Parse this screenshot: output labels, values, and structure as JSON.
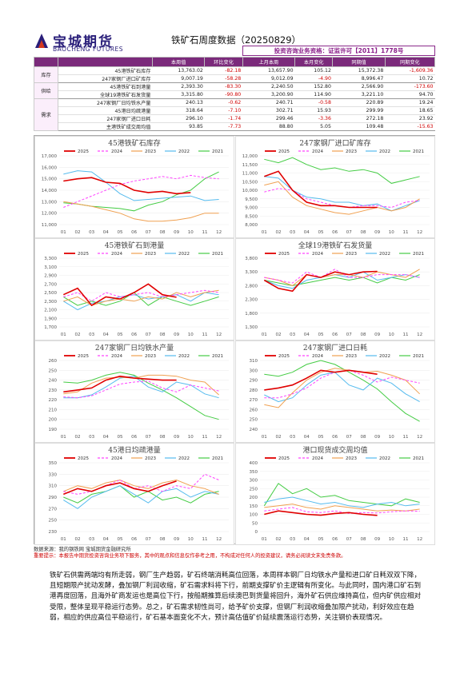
{
  "header": {
    "logo_cn": "宝城期货",
    "logo_en": "BAOCHENG FUTURES",
    "title": "铁矿石周度数据（20250829）",
    "license": "投资咨询业务资格：证监许可【2011】1778号"
  },
  "summary_table": {
    "columns": [
      "",
      "",
      "本周值",
      "环比变化",
      "上月本周",
      "本月变化",
      "同期值",
      "同期变化"
    ],
    "groups": [
      {
        "category": "库存",
        "rows": [
          {
            "name": "45港铁矿石库存",
            "values": [
              "13,763.02",
              "-82.18",
              "13,657.90",
              "105.12",
              "15,372.38",
              "-1,609.36"
            ]
          },
          {
            "name": "247家钢厂进口矿库存",
            "values": [
              "9,007.19",
              "-58.28",
              "9,012.09",
              "-4.90",
              "8,996.47",
              "10.72"
            ]
          }
        ]
      },
      {
        "category": "供给",
        "rows": [
          {
            "name": "45港铁矿石到港量",
            "values": [
              "2,393.30",
              "-83.30",
              "2,240.50",
              "152.80",
              "2,566.90",
              "-173.60"
            ]
          },
          {
            "name": "全球19港铁矿石发货量",
            "values": [
              "3,315.80",
              "-90.80",
              "3,200.90",
              "114.90",
              "3,221.10",
              "94.70"
            ]
          }
        ]
      },
      {
        "category": "需求",
        "rows": [
          {
            "name": "247家钢厂日均铁水产量",
            "values": [
              "240.13",
              "-0.62",
              "240.71",
              "-0.58",
              "220.89",
              "19.24"
            ]
          },
          {
            "name": "45港日均疏港量",
            "values": [
              "318.64",
              "-7.10",
              "302.71",
              "15.93",
              "299.99",
              "18.65"
            ]
          },
          {
            "name": "247家钢厂进口日耗",
            "values": [
              "296.10",
              "-1.74",
              "299.46",
              "-3.36",
              "272.18",
              "23.92"
            ]
          },
          {
            "name": "主港铁矿成交周均值",
            "values": [
              "93.85",
              "-7.73",
              "88.80",
              "5.05",
              "109.48",
              "-15.63"
            ]
          }
        ]
      }
    ]
  },
  "legend_years": [
    "2025",
    "2024",
    "2023",
    "2022",
    "2021"
  ],
  "series_colors": {
    "2025": "#e00000",
    "2024": "#ff44ff",
    "2023": "#f0a050",
    "2022": "#55bbee",
    "2021": "#44cc44"
  },
  "month_labels": [
    "01",
    "02",
    "03",
    "04",
    "05",
    "06",
    "07",
    "08",
    "09",
    "10",
    "11",
    "12"
  ],
  "charts": [
    {
      "title": "45港铁矿石库存",
      "yticks": [
        "11,000",
        "12,000",
        "13,000",
        "14,000",
        "15,000",
        "16,000",
        "17,000"
      ],
      "ylim": [
        11000,
        17000
      ],
      "series": {
        "2025": [
          14800,
          15000,
          15100,
          14700,
          14600,
          14000,
          13800,
          13900,
          13700,
          13800
        ],
        "2024": [
          12500,
          13000,
          13500,
          14000,
          14500,
          14800,
          15000,
          15200,
          15000,
          15300,
          15100,
          15000
        ],
        "2023": [
          13000,
          12800,
          12600,
          12300,
          12000,
          11500,
          11300,
          11300,
          11400,
          11600,
          12000,
          12000
        ],
        "2022": [
          15400,
          15700,
          15600,
          14700,
          13700,
          13100,
          13200,
          13300,
          13400,
          13500,
          13100,
          13200
        ],
        "2021": [
          12900,
          12800,
          12600,
          12500,
          12400,
          12200,
          12700,
          13000,
          13600,
          14000,
          15000,
          15600
        ]
      }
    },
    {
      "title": "247家钢厂进口矿库存",
      "yticks": [
        "8,000",
        "8,500",
        "9,000",
        "9,500",
        "10,000",
        "10,500",
        "11,000",
        "11,500",
        "12,000"
      ],
      "ylim": [
        8000,
        12000
      ],
      "series": {
        "2025": [
          10800,
          11100,
          10000,
          9300,
          9100,
          9100,
          9000,
          9000,
          9000
        ],
        "2024": [
          9900,
          10100,
          10000,
          9500,
          9300,
          9100,
          9000,
          9100,
          9100,
          9000,
          9300,
          9400
        ],
        "2023": [
          10300,
          10500,
          9600,
          9100,
          8900,
          8700,
          8600,
          8800,
          9000,
          8800,
          9000,
          9500
        ],
        "2022": [
          10800,
          10700,
          10000,
          9600,
          9500,
          9300,
          9300,
          9100,
          9200,
          8800,
          9100,
          9400
        ],
        "2021": [
          11800,
          11600,
          11900,
          11500,
          11200,
          11300,
          11100,
          11200,
          11000,
          10400,
          10600,
          10800
        ]
      }
    },
    {
      "title": "45港铁矿石到港量",
      "yticks": [
        "1,700",
        "1,900",
        "2,100",
        "2,300",
        "2,500",
        "2,700",
        "2,900",
        "3,100",
        "3,300"
      ],
      "ylim": [
        1700,
        3300
      ],
      "series": {
        "2025": [
          2450,
          2600,
          2200,
          2400,
          2350,
          2500,
          2700,
          2450,
          2390
        ],
        "2024": [
          2400,
          2500,
          2300,
          2500,
          2400,
          2450,
          2500,
          2400,
          2450,
          2500,
          2550,
          2500
        ],
        "2023": [
          2300,
          2400,
          2200,
          2300,
          2350,
          2300,
          2400,
          2350,
          2500,
          2400,
          2500,
          2550
        ],
        "2022": [
          2300,
          2100,
          2250,
          2300,
          2400,
          2450,
          2350,
          2400,
          2450,
          2300,
          2500,
          2450
        ],
        "2021": [
          2400,
          2200,
          2300,
          2200,
          2300,
          2500,
          2200,
          2400,
          2300,
          2200,
          2300,
          2400
        ]
      }
    },
    {
      "title": "全球19港铁矿石发货量",
      "yticks": [
        "1,300",
        "1,800",
        "2,300",
        "2,800",
        "3,300",
        "3,800"
      ],
      "ylim": [
        1300,
        3800
      ],
      "series": {
        "2025": [
          3000,
          2700,
          2600,
          3200,
          3100,
          3300,
          3200,
          3300,
          3320
        ],
        "2024": [
          3100,
          3000,
          2900,
          3300,
          3100,
          3400,
          3100,
          3100,
          3200,
          3200,
          3200,
          3100
        ],
        "2023": [
          3100,
          3000,
          2800,
          3200,
          3100,
          3200,
          3200,
          3100,
          3300,
          3200,
          3100,
          3400
        ],
        "2022": [
          3000,
          2800,
          2700,
          3000,
          3100,
          3200,
          3100,
          3300,
          3000,
          3100,
          3200,
          3100
        ],
        "2021": [
          3000,
          2900,
          2800,
          2900,
          3000,
          3100,
          3000,
          3100,
          2900,
          3100,
          3000,
          3200
        ]
      }
    },
    {
      "title": "247家钢厂日均铁水产量",
      "yticks": [
        "190",
        "200",
        "210",
        "220",
        "230",
        "240",
        "250",
        "260"
      ],
      "ylim": [
        190,
        260
      ],
      "series": {
        "2025": [
          228,
          230,
          232,
          240,
          244,
          242,
          241,
          240,
          240
        ],
        "2024": [
          223,
          222,
          224,
          230,
          236,
          238,
          239,
          232,
          228,
          235,
          232,
          229
        ],
        "2023": [
          226,
          228,
          237,
          242,
          243,
          242,
          245,
          245,
          244,
          240,
          238,
          225
        ],
        "2022": [
          222,
          222,
          225,
          233,
          242,
          244,
          233,
          228,
          238,
          235,
          226,
          222
        ],
        "2021": [
          238,
          237,
          240,
          245,
          248,
          245,
          237,
          230,
          222,
          213,
          204,
          200
        ]
      }
    },
    {
      "title": "247家钢厂进口日耗",
      "yticks": [
        "240",
        "250",
        "260",
        "270",
        "280",
        "290",
        "300",
        "310"
      ],
      "ylim": [
        240,
        310
      ],
      "series": {
        "2025": [
          280,
          282,
          285,
          292,
          300,
          298,
          300,
          298,
          296
        ],
        "2024": [
          272,
          272,
          276,
          282,
          292,
          298,
          300,
          295,
          288,
          293,
          290,
          287
        ],
        "2023": [
          265,
          262,
          277,
          290,
          298,
          302,
          300,
          298,
          299,
          295,
          290,
          276
        ],
        "2022": [
          275,
          268,
          272,
          285,
          295,
          298,
          285,
          280,
          292,
          287,
          276,
          268
        ],
        "2021": [
          296,
          294,
          298,
          306,
          310,
          306,
          298,
          290,
          281,
          268,
          256,
          248
        ]
      }
    },
    {
      "title": "45港日均疏港量",
      "yticks": [
        "230",
        "250",
        "270",
        "290",
        "310",
        "330",
        "350"
      ],
      "ylim": [
        230,
        350
      ],
      "series": {
        "2025": [
          295,
          305,
          300,
          310,
          315,
          305,
          300,
          310,
          318
        ],
        "2024": [
          300,
          295,
          300,
          310,
          320,
          305,
          310,
          300,
          310,
          305,
          330,
          320
        ],
        "2023": [
          300,
          310,
          305,
          315,
          320,
          310,
          305,
          315,
          320,
          310,
          305,
          295
        ],
        "2022": [
          285,
          270,
          290,
          300,
          310,
          295,
          280,
          300,
          305,
          290,
          300,
          295
        ],
        "2021": [
          290,
          280,
          295,
          300,
          310,
          290,
          300,
          285,
          290,
          280,
          295,
          300
        ]
      }
    },
    {
      "title": "港口现货成交周均值",
      "yticks": [
        "0",
        "50",
        "100",
        "150",
        "200",
        "250",
        "300",
        "350",
        "400"
      ],
      "ylim": [
        0,
        400
      ],
      "series": {
        "2025": [
          100,
          120,
          110,
          100,
          95,
          105,
          110,
          100,
          94
        ],
        "2024": [
          120,
          130,
          140,
          115,
          110,
          120,
          105,
          110,
          108,
          115,
          120,
          118
        ],
        "2023": [
          140,
          150,
          160,
          140,
          130,
          150,
          140,
          130,
          120,
          125,
          120,
          130
        ],
        "2022": [
          170,
          190,
          200,
          180,
          160,
          170,
          150,
          140,
          160,
          170,
          150,
          160
        ],
        "2021": [
          150,
          280,
          220,
          250,
          200,
          210,
          180,
          170,
          160,
          150,
          190,
          170
        ]
      }
    }
  ],
  "source_note": "数据来源：我的钢铁网 宝城期货金融研究所",
  "disclaimer": "重要提示：本报告中期货投资咨询业务项下服务，其中的观点和信息仅作参考之用，不构成对任何人的投资建议，请务必阅读文末免责条款。",
  "commentary": "铁矿石供需两端均有所走弱，钢厂生产趋弱，矿石终端消耗高位回落，本周样本钢厂日均铁水产量和进口矿日耗双双下降，且短期限产扰动发酵，叠加钢厂利润收缩，矿石需求料将下行，前期支撑矿价主逻辑有所变化。与此同时，国内港口矿石到港再度回落，且海外矿商发运也是高位下行，按船期推算后续澳巴到货量将回升，海外矿石供应维持高位，但内矿供应相对受限，整体呈现平稳运行态势。总之，矿石需求韧性尚可，给予矿价支撑，但钢厂利润收缩叠加限产扰动，利好效应在趋弱，相应的供应高位平稳运行，矿石基本面变化不大，预计高估值矿价延续震荡运行态势，关注钢价表现情况。"
}
